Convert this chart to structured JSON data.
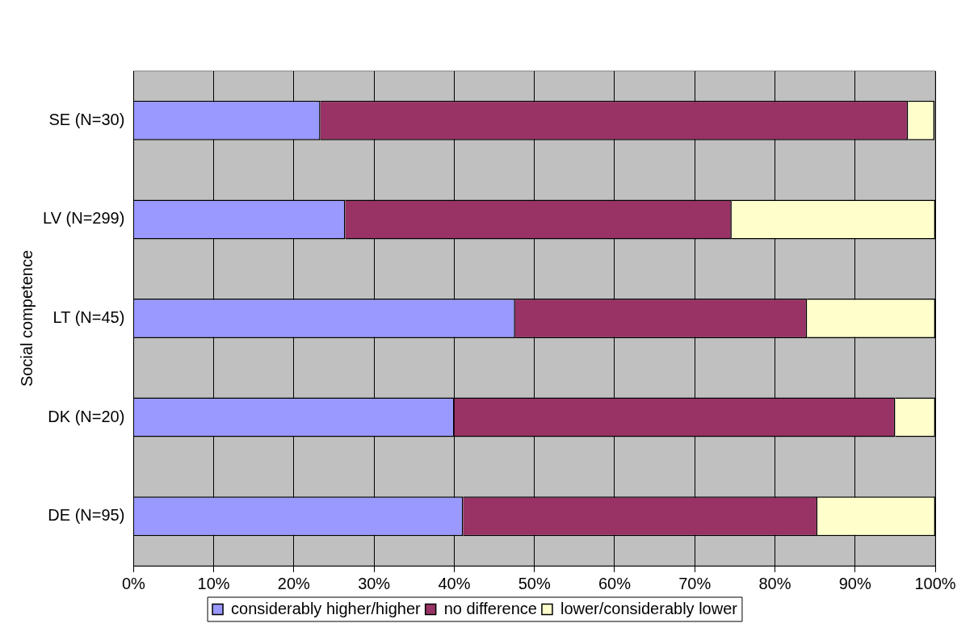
{
  "chart_data": {
    "type": "bar",
    "orientation": "horizontal",
    "stacked": true,
    "ylabel": "Social competence",
    "categories": [
      "SE (N=30)",
      "LV (N=299)",
      "LT (N=45)",
      "DK (N=20)",
      "DE (N=95)"
    ],
    "series": [
      {
        "name": "considerably higher/higher",
        "color": "#9999ff",
        "values": [
          23.3,
          26.4,
          47.6,
          40.0,
          41.1
        ]
      },
      {
        "name": "no difference",
        "color": "#993366",
        "values": [
          73.3,
          48.2,
          36.4,
          55.0,
          44.2
        ]
      },
      {
        "name": "lower/considerably lower",
        "color": "#ffffcc",
        "values": [
          3.3,
          25.4,
          16.0,
          5.0,
          14.7
        ]
      }
    ],
    "xlim": [
      0,
      100
    ],
    "xticks": [
      {
        "value": 0,
        "label": "0%"
      },
      {
        "value": 10,
        "label": "10%"
      },
      {
        "value": 20,
        "label": "20%"
      },
      {
        "value": 30,
        "label": "30%"
      },
      {
        "value": 40,
        "label": "40%"
      },
      {
        "value": 50,
        "label": "50%"
      },
      {
        "value": 60,
        "label": "60%"
      },
      {
        "value": 70,
        "label": "70%"
      },
      {
        "value": 80,
        "label": "80%"
      },
      {
        "value": 90,
        "label": "90%"
      },
      {
        "value": 100,
        "label": "100%"
      }
    ],
    "grid": "x",
    "legend": "bottom"
  }
}
